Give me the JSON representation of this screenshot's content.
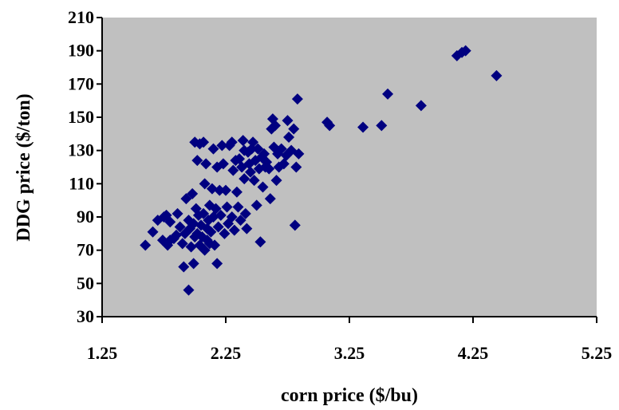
{
  "chart_data": {
    "type": "scatter",
    "title": "",
    "xlabel": "corn price ($/bu)",
    "ylabel": "DDG price ($/ton)",
    "xlim": [
      1.25,
      5.25
    ],
    "ylim": [
      30,
      210
    ],
    "xticks": [
      "1.25",
      "2.25",
      "3.25",
      "4.25",
      "5.25"
    ],
    "yticks": [
      "30",
      "50",
      "70",
      "90",
      "110",
      "130",
      "150",
      "170",
      "190",
      "210"
    ],
    "grid": false,
    "legend": "none",
    "colors": {
      "plot_background": "#c0c0c0",
      "marker": "#000080",
      "axis": "#000000"
    },
    "marker": "diamond",
    "series": [
      {
        "points": [
          [
            1.6,
            73
          ],
          [
            1.66,
            81
          ],
          [
            1.7,
            88
          ],
          [
            1.74,
            76
          ],
          [
            1.75,
            90
          ],
          [
            1.77,
            91
          ],
          [
            1.78,
            73
          ],
          [
            1.8,
            76
          ],
          [
            1.8,
            87
          ],
          [
            1.83,
            77
          ],
          [
            1.85,
            79
          ],
          [
            1.86,
            92
          ],
          [
            1.88,
            84
          ],
          [
            1.9,
            74
          ],
          [
            1.91,
            60
          ],
          [
            1.92,
            80
          ],
          [
            1.93,
            101
          ],
          [
            1.95,
            46
          ],
          [
            1.95,
            88
          ],
          [
            1.96,
            83
          ],
          [
            1.97,
            72
          ],
          [
            1.98,
            104
          ],
          [
            1.99,
            62
          ],
          [
            1.99,
            86
          ],
          [
            2.0,
            135
          ],
          [
            2.0,
            78
          ],
          [
            2.01,
            95
          ],
          [
            2.02,
            80
          ],
          [
            2.02,
            124
          ],
          [
            2.03,
            91
          ],
          [
            2.04,
            134
          ],
          [
            2.04,
            73
          ],
          [
            2.05,
            85
          ],
          [
            2.06,
            78
          ],
          [
            2.07,
            92
          ],
          [
            2.07,
            135
          ],
          [
            2.08,
            70
          ],
          [
            2.08,
            110
          ],
          [
            2.09,
            122
          ],
          [
            2.1,
            83
          ],
          [
            2.1,
            76
          ],
          [
            2.11,
            88
          ],
          [
            2.12,
            97
          ],
          [
            2.12,
            74
          ],
          [
            2.13,
            81
          ],
          [
            2.14,
            107
          ],
          [
            2.15,
            131
          ],
          [
            2.15,
            90
          ],
          [
            2.16,
            73
          ],
          [
            2.17,
            95
          ],
          [
            2.18,
            120
          ],
          [
            2.18,
            62
          ],
          [
            2.19,
            84
          ],
          [
            2.2,
            106
          ],
          [
            2.21,
            91
          ],
          [
            2.22,
            133
          ],
          [
            2.23,
            122
          ],
          [
            2.24,
            80
          ],
          [
            2.25,
            106
          ],
          [
            2.26,
            96
          ],
          [
            2.27,
            86
          ],
          [
            2.28,
            133
          ],
          [
            2.3,
            135
          ],
          [
            2.3,
            90
          ],
          [
            2.31,
            118
          ],
          [
            2.32,
            82
          ],
          [
            2.33,
            124
          ],
          [
            2.34,
            105
          ],
          [
            2.35,
            96
          ],
          [
            2.36,
            125
          ],
          [
            2.37,
            88
          ],
          [
            2.38,
            120
          ],
          [
            2.39,
            136
          ],
          [
            2.4,
            130
          ],
          [
            2.4,
            113
          ],
          [
            2.41,
            92
          ],
          [
            2.42,
            83
          ],
          [
            2.43,
            129
          ],
          [
            2.44,
            122
          ],
          [
            2.45,
            117
          ],
          [
            2.46,
            131
          ],
          [
            2.47,
            135
          ],
          [
            2.48,
            112
          ],
          [
            2.49,
            124
          ],
          [
            2.5,
            97
          ],
          [
            2.51,
            131
          ],
          [
            2.52,
            119
          ],
          [
            2.53,
            75
          ],
          [
            2.54,
            126
          ],
          [
            2.55,
            108
          ],
          [
            2.56,
            128
          ],
          [
            2.57,
            120
          ],
          [
            2.58,
            123
          ],
          [
            2.6,
            119
          ],
          [
            2.61,
            101
          ],
          [
            2.62,
            143
          ],
          [
            2.63,
            149
          ],
          [
            2.64,
            132
          ],
          [
            2.65,
            145
          ],
          [
            2.66,
            112
          ],
          [
            2.67,
            128
          ],
          [
            2.68,
            120
          ],
          [
            2.7,
            131
          ],
          [
            2.72,
            122
          ],
          [
            2.74,
            127
          ],
          [
            2.75,
            148
          ],
          [
            2.76,
            138
          ],
          [
            2.78,
            130
          ],
          [
            2.8,
            143
          ],
          [
            2.81,
            85
          ],
          [
            2.82,
            120
          ],
          [
            2.83,
            161
          ],
          [
            2.84,
            128
          ],
          [
            3.07,
            147
          ],
          [
            3.09,
            145
          ],
          [
            3.36,
            144
          ],
          [
            3.51,
            145
          ],
          [
            3.56,
            164
          ],
          [
            3.83,
            157
          ],
          [
            4.12,
            187
          ],
          [
            4.16,
            189
          ],
          [
            4.19,
            190
          ],
          [
            4.44,
            175
          ]
        ]
      }
    ]
  }
}
